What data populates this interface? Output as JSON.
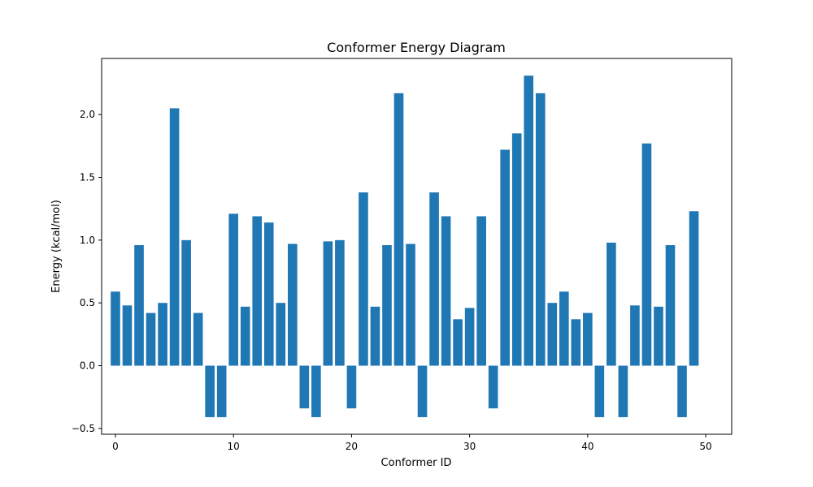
{
  "chart_data": {
    "type": "bar",
    "title": "Conformer Energy Diagram",
    "xlabel": "Conformer ID",
    "ylabel": "Energy (kcal/mol)",
    "x": [
      0,
      1,
      2,
      3,
      4,
      5,
      6,
      7,
      8,
      9,
      10,
      11,
      12,
      13,
      14,
      15,
      16,
      17,
      18,
      19,
      20,
      21,
      22,
      23,
      24,
      25,
      26,
      27,
      28,
      29,
      30,
      31,
      32,
      33,
      34,
      35,
      36,
      37,
      38,
      39,
      40,
      41,
      42,
      43,
      44,
      45,
      46,
      47,
      48,
      49
    ],
    "values": [
      0.59,
      0.48,
      0.96,
      0.42,
      0.5,
      2.05,
      1.0,
      0.42,
      -0.41,
      -0.41,
      1.21,
      0.47,
      1.19,
      1.14,
      0.5,
      0.97,
      -0.34,
      -0.41,
      0.99,
      1.0,
      -0.34,
      1.38,
      0.47,
      0.96,
      2.17,
      0.97,
      -0.41,
      1.38,
      1.19,
      0.37,
      0.46,
      1.19,
      -0.34,
      1.72,
      1.85,
      2.31,
      2.17,
      0.5,
      0.59,
      0.37,
      0.42,
      -0.41,
      0.98,
      -0.41,
      0.48,
      1.77,
      0.47,
      0.96,
      -0.41,
      1.23
    ],
    "xlim": [
      -1.17,
      52.2
    ],
    "ylim": [
      -0.546,
      2.447
    ],
    "xticks": [
      0,
      10,
      20,
      30,
      40,
      50
    ],
    "xtick_labels": [
      "0",
      "10",
      "20",
      "30",
      "40",
      "50"
    ],
    "yticks": [
      -0.5,
      0.0,
      0.5,
      1.0,
      1.5,
      2.0
    ],
    "ytick_labels": [
      "−0.5",
      "0.0",
      "0.5",
      "1.0",
      "1.5",
      "2.0"
    ],
    "bar_color": "#1f77b4",
    "grid": false
  }
}
